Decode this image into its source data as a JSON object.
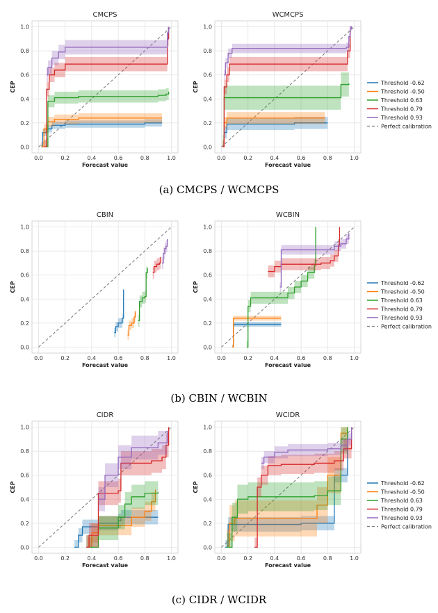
{
  "figure": {
    "colors": {
      "t062": "#1f77b4",
      "t050": "#ff7f0e",
      "t063": "#2ca02c",
      "t079": "#d62728",
      "t093": "#9467bd",
      "perfect": "#7f7f7f"
    },
    "legend_labels": {
      "t062": "Threshold -0.62",
      "t050": "Threshold -0.50",
      "t063": "Threshold 0.63",
      "t079": "Threshold 0.79",
      "t093": "Threshold 0.93",
      "perfect": "Perfect calibration"
    },
    "captions": [
      "(a) CMCPS / WCMCPS",
      "(b) CBIN / WCBIN",
      "(c) CIDR / WCIDR"
    ]
  },
  "chart_data": [
    {
      "type": "line",
      "title": "CMCPS",
      "xlabel": "Forecast value",
      "ylabel": "CEP",
      "xlim": [
        0,
        1
      ],
      "ylim": [
        0,
        1
      ],
      "grid": true,
      "series": [
        {
          "key": "t062",
          "points": [
            [
              0.02,
              0.0
            ],
            [
              0.03,
              0.12
            ],
            [
              0.06,
              0.15
            ],
            [
              0.1,
              0.18
            ],
            [
              0.2,
              0.19
            ],
            [
              0.4,
              0.19
            ],
            [
              0.8,
              0.2
            ],
            [
              0.93,
              0.2
            ]
          ],
          "band": 0.03
        },
        {
          "key": "t050",
          "points": [
            [
              0.02,
              0.0
            ],
            [
              0.04,
              0.15
            ],
            [
              0.07,
              0.21
            ],
            [
              0.12,
              0.23
            ],
            [
              0.3,
              0.24
            ],
            [
              0.7,
              0.24
            ],
            [
              0.93,
              0.24
            ]
          ],
          "band": 0.04
        },
        {
          "key": "t063",
          "points": [
            [
              0.05,
              0.0
            ],
            [
              0.07,
              0.38
            ],
            [
              0.12,
              0.41
            ],
            [
              0.3,
              0.42
            ],
            [
              0.6,
              0.42
            ],
            [
              0.9,
              0.43
            ],
            [
              0.96,
              0.44
            ],
            [
              0.98,
              0.46
            ]
          ],
          "band": 0.05
        },
        {
          "key": "t079",
          "points": [
            [
              0.04,
              0.0
            ],
            [
              0.06,
              0.48
            ],
            [
              0.08,
              0.6
            ],
            [
              0.12,
              0.64
            ],
            [
              0.2,
              0.69
            ],
            [
              0.6,
              0.69
            ],
            [
              0.96,
              0.69
            ],
            [
              0.97,
              0.9
            ],
            [
              0.98,
              1.0
            ]
          ],
          "band": 0.06
        },
        {
          "key": "t093",
          "points": [
            [
              0.06,
              0.6
            ],
            [
              0.07,
              0.66
            ],
            [
              0.1,
              0.74
            ],
            [
              0.15,
              0.79
            ],
            [
              0.2,
              0.83
            ],
            [
              0.6,
              0.83
            ],
            [
              0.96,
              0.83
            ],
            [
              0.97,
              0.95
            ],
            [
              0.98,
              1.0
            ]
          ],
          "band": 0.06
        }
      ]
    },
    {
      "type": "line",
      "title": "WCMCPS",
      "xlabel": "Forecast value",
      "ylabel": "CEP",
      "xlim": [
        0,
        1
      ],
      "ylim": [
        0,
        1
      ],
      "grid": true,
      "series": [
        {
          "key": "t062",
          "points": [
            [
              0.01,
              0.0
            ],
            [
              0.02,
              0.12
            ],
            [
              0.04,
              0.19
            ],
            [
              0.2,
              0.19
            ],
            [
              0.55,
              0.2
            ],
            [
              0.7,
              0.2
            ],
            [
              0.8,
              0.2
            ]
          ],
          "band": 0.05
        },
        {
          "key": "t050",
          "points": [
            [
              0.01,
              0.0
            ],
            [
              0.02,
              0.2
            ],
            [
              0.04,
              0.24
            ],
            [
              0.3,
              0.24
            ],
            [
              0.6,
              0.24
            ],
            [
              0.78,
              0.24
            ]
          ],
          "band": 0.05
        },
        {
          "key": "t063",
          "points": [
            [
              0.01,
              0.0
            ],
            [
              0.02,
              0.41
            ],
            [
              0.3,
              0.41
            ],
            [
              0.87,
              0.41
            ],
            [
              0.9,
              0.52
            ],
            [
              0.96,
              0.53
            ]
          ],
          "band": 0.1
        },
        {
          "key": "t079",
          "points": [
            [
              0.01,
              0.0
            ],
            [
              0.02,
              0.5
            ],
            [
              0.04,
              0.6
            ],
            [
              0.06,
              0.69
            ],
            [
              0.5,
              0.69
            ],
            [
              0.92,
              0.69
            ],
            [
              0.95,
              0.8
            ],
            [
              0.97,
              0.99
            ]
          ],
          "band": 0.06
        },
        {
          "key": "t093",
          "points": [
            [
              0.02,
              0.6
            ],
            [
              0.03,
              0.7
            ],
            [
              0.05,
              0.78
            ],
            [
              0.08,
              0.82
            ],
            [
              0.5,
              0.82
            ],
            [
              0.94,
              0.83
            ],
            [
              0.96,
              0.92
            ],
            [
              0.97,
              1.0
            ],
            [
              0.98,
              0.98
            ]
          ],
          "band": 0.04
        }
      ]
    },
    {
      "type": "line",
      "title": "CBIN",
      "xlabel": "Forecast value",
      "ylabel": "CEP",
      "xlim": [
        0,
        1
      ],
      "ylim": [
        0,
        1
      ],
      "grid": true,
      "series": [
        {
          "key": "t062",
          "points": [
            [
              0.57,
              0.12
            ],
            [
              0.58,
              0.17
            ],
            [
              0.6,
              0.2
            ],
            [
              0.62,
              0.2
            ],
            [
              0.63,
              0.24
            ],
            [
              0.64,
              0.48
            ]
          ],
          "band": 0.04
        },
        {
          "key": "t050",
          "points": [
            [
              0.67,
              0.1
            ],
            [
              0.68,
              0.18
            ],
            [
              0.7,
              0.2
            ],
            [
              0.72,
              0.25
            ],
            [
              0.73,
              0.3
            ]
          ],
          "band": 0.04
        },
        {
          "key": "t063",
          "points": [
            [
              0.75,
              0.22
            ],
            [
              0.76,
              0.38
            ],
            [
              0.78,
              0.41
            ],
            [
              0.8,
              0.42
            ],
            [
              0.81,
              0.62
            ],
            [
              0.82,
              0.66
            ]
          ],
          "band": 0.05
        },
        {
          "key": "t079",
          "points": [
            [
              0.86,
              0.62
            ],
            [
              0.87,
              0.67
            ],
            [
              0.89,
              0.69
            ],
            [
              0.91,
              0.7
            ],
            [
              0.92,
              0.75
            ]
          ],
          "band": 0.05
        },
        {
          "key": "t093",
          "points": [
            [
              0.93,
              0.7
            ],
            [
              0.94,
              0.78
            ],
            [
              0.95,
              0.82
            ],
            [
              0.96,
              0.84
            ],
            [
              0.97,
              0.9
            ]
          ],
          "band": 0.05
        }
      ]
    },
    {
      "type": "line",
      "title": "WCBIN",
      "xlabel": "Forecast value",
      "ylabel": "CEP",
      "xlim": [
        0,
        1
      ],
      "ylim": [
        0,
        1
      ],
      "grid": true,
      "series": [
        {
          "key": "t062",
          "points": [
            [
              0.08,
              0.0
            ],
            [
              0.09,
              0.19
            ],
            [
              0.2,
              0.19
            ],
            [
              0.45,
              0.19
            ]
          ],
          "band": 0.02
        },
        {
          "key": "t050",
          "points": [
            [
              0.08,
              0.0
            ],
            [
              0.09,
              0.24
            ],
            [
              0.3,
              0.24
            ],
            [
              0.45,
              0.24
            ]
          ],
          "band": 0.02
        },
        {
          "key": "t063",
          "points": [
            [
              0.19,
              0.0
            ],
            [
              0.2,
              0.34
            ],
            [
              0.22,
              0.41
            ],
            [
              0.45,
              0.41
            ],
            [
              0.5,
              0.45
            ],
            [
              0.55,
              0.5
            ],
            [
              0.6,
              0.55
            ],
            [
              0.65,
              0.62
            ],
            [
              0.7,
              0.68
            ],
            [
              0.71,
              1.0
            ]
          ],
          "band": 0.05
        },
        {
          "key": "t079",
          "points": [
            [
              0.35,
              0.63
            ],
            [
              0.4,
              0.67
            ],
            [
              0.45,
              0.69
            ],
            [
              0.6,
              0.69
            ],
            [
              0.75,
              0.7
            ],
            [
              0.82,
              0.72
            ],
            [
              0.85,
              0.76
            ],
            [
              0.88,
              0.85
            ],
            [
              0.89,
              1.0
            ]
          ],
          "band": 0.05
        },
        {
          "key": "t093",
          "points": [
            [
              0.44,
              0.5
            ],
            [
              0.45,
              0.81
            ],
            [
              0.7,
              0.81
            ],
            [
              0.85,
              0.84
            ],
            [
              0.9,
              0.86
            ],
            [
              0.94,
              0.9
            ],
            [
              0.96,
              0.95
            ]
          ],
          "band": 0.04
        }
      ]
    },
    {
      "type": "line",
      "title": "CIDR",
      "xlabel": "Forecast value",
      "ylabel": "CEP",
      "xlim": [
        0,
        1
      ],
      "ylim": [
        0,
        1
      ],
      "grid": true,
      "series": [
        {
          "key": "t062",
          "points": [
            [
              0.27,
              0.0
            ],
            [
              0.3,
              0.1
            ],
            [
              0.33,
              0.17
            ],
            [
              0.45,
              0.2
            ],
            [
              0.6,
              0.22
            ],
            [
              0.62,
              0.25
            ],
            [
              0.9,
              0.25
            ]
          ],
          "band": 0.06
        },
        {
          "key": "t050",
          "points": [
            [
              0.37,
              0.0
            ],
            [
              0.4,
              0.12
            ],
            [
              0.45,
              0.18
            ],
            [
              0.6,
              0.18
            ],
            [
              0.7,
              0.25
            ],
            [
              0.8,
              0.3
            ],
            [
              0.85,
              0.38
            ],
            [
              0.88,
              0.48
            ]
          ],
          "band": 0.08
        },
        {
          "key": "t063",
          "points": [
            [
              0.36,
              0.0
            ],
            [
              0.45,
              0.16
            ],
            [
              0.6,
              0.25
            ],
            [
              0.65,
              0.36
            ],
            [
              0.7,
              0.42
            ],
            [
              0.8,
              0.45
            ],
            [
              0.9,
              0.46
            ]
          ],
          "band": 0.1
        },
        {
          "key": "t079",
          "points": [
            [
              0.36,
              0.0
            ],
            [
              0.38,
              0.1
            ],
            [
              0.45,
              0.45
            ],
            [
              0.6,
              0.47
            ],
            [
              0.62,
              0.7
            ],
            [
              0.85,
              0.72
            ],
            [
              0.93,
              0.75
            ],
            [
              0.96,
              0.85
            ],
            [
              0.98,
              1.0
            ]
          ],
          "band": 0.1
        },
        {
          "key": "t093",
          "points": [
            [
              0.45,
              0.4
            ],
            [
              0.5,
              0.6
            ],
            [
              0.6,
              0.75
            ],
            [
              0.7,
              0.83
            ],
            [
              0.85,
              0.83
            ],
            [
              0.9,
              0.87
            ],
            [
              0.97,
              0.97
            ]
          ],
          "band": 0.1
        }
      ]
    },
    {
      "type": "line",
      "title": "WCIDR",
      "xlabel": "Forecast value",
      "ylabel": "CEP",
      "xlim": [
        0,
        1
      ],
      "ylim": [
        0,
        1
      ],
      "grid": true,
      "series": [
        {
          "key": "t062",
          "points": [
            [
              0.03,
              0.0
            ],
            [
              0.05,
              0.19
            ],
            [
              0.35,
              0.19
            ],
            [
              0.6,
              0.2
            ],
            [
              0.75,
              0.2
            ],
            [
              0.85,
              0.6
            ],
            [
              0.95,
              1.0
            ]
          ],
          "band": 0.06
        },
        {
          "key": "t050",
          "points": [
            [
              0.04,
              0.0
            ],
            [
              0.06,
              0.2
            ],
            [
              0.1,
              0.24
            ],
            [
              0.3,
              0.24
            ],
            [
              0.6,
              0.24
            ],
            [
              0.72,
              0.35
            ],
            [
              0.8,
              0.6
            ],
            [
              0.9,
              0.95
            ],
            [
              0.95,
              1.0
            ]
          ],
          "band": 0.15
        },
        {
          "key": "t063",
          "points": [
            [
              0.04,
              0.0
            ],
            [
              0.08,
              0.25
            ],
            [
              0.12,
              0.4
            ],
            [
              0.2,
              0.42
            ],
            [
              0.45,
              0.42
            ],
            [
              0.7,
              0.43
            ],
            [
              0.8,
              0.47
            ],
            [
              0.9,
              0.9
            ],
            [
              0.95,
              1.0
            ]
          ],
          "band": 0.12
        },
        {
          "key": "t079",
          "points": [
            [
              0.25,
              0.0
            ],
            [
              0.27,
              0.5
            ],
            [
              0.3,
              0.6
            ],
            [
              0.35,
              0.68
            ],
            [
              0.45,
              0.69
            ],
            [
              0.7,
              0.7
            ],
            [
              0.85,
              0.72
            ],
            [
              0.92,
              0.82
            ],
            [
              0.98,
              1.0
            ]
          ],
          "band": 0.08
        },
        {
          "key": "t093",
          "points": [
            [
              0.3,
              0.7
            ],
            [
              0.32,
              0.75
            ],
            [
              0.4,
              0.79
            ],
            [
              0.5,
              0.81
            ],
            [
              0.8,
              0.82
            ],
            [
              0.9,
              0.85
            ],
            [
              0.95,
              0.9
            ],
            [
              0.98,
              1.0
            ]
          ],
          "band": 0.05
        }
      ]
    }
  ]
}
